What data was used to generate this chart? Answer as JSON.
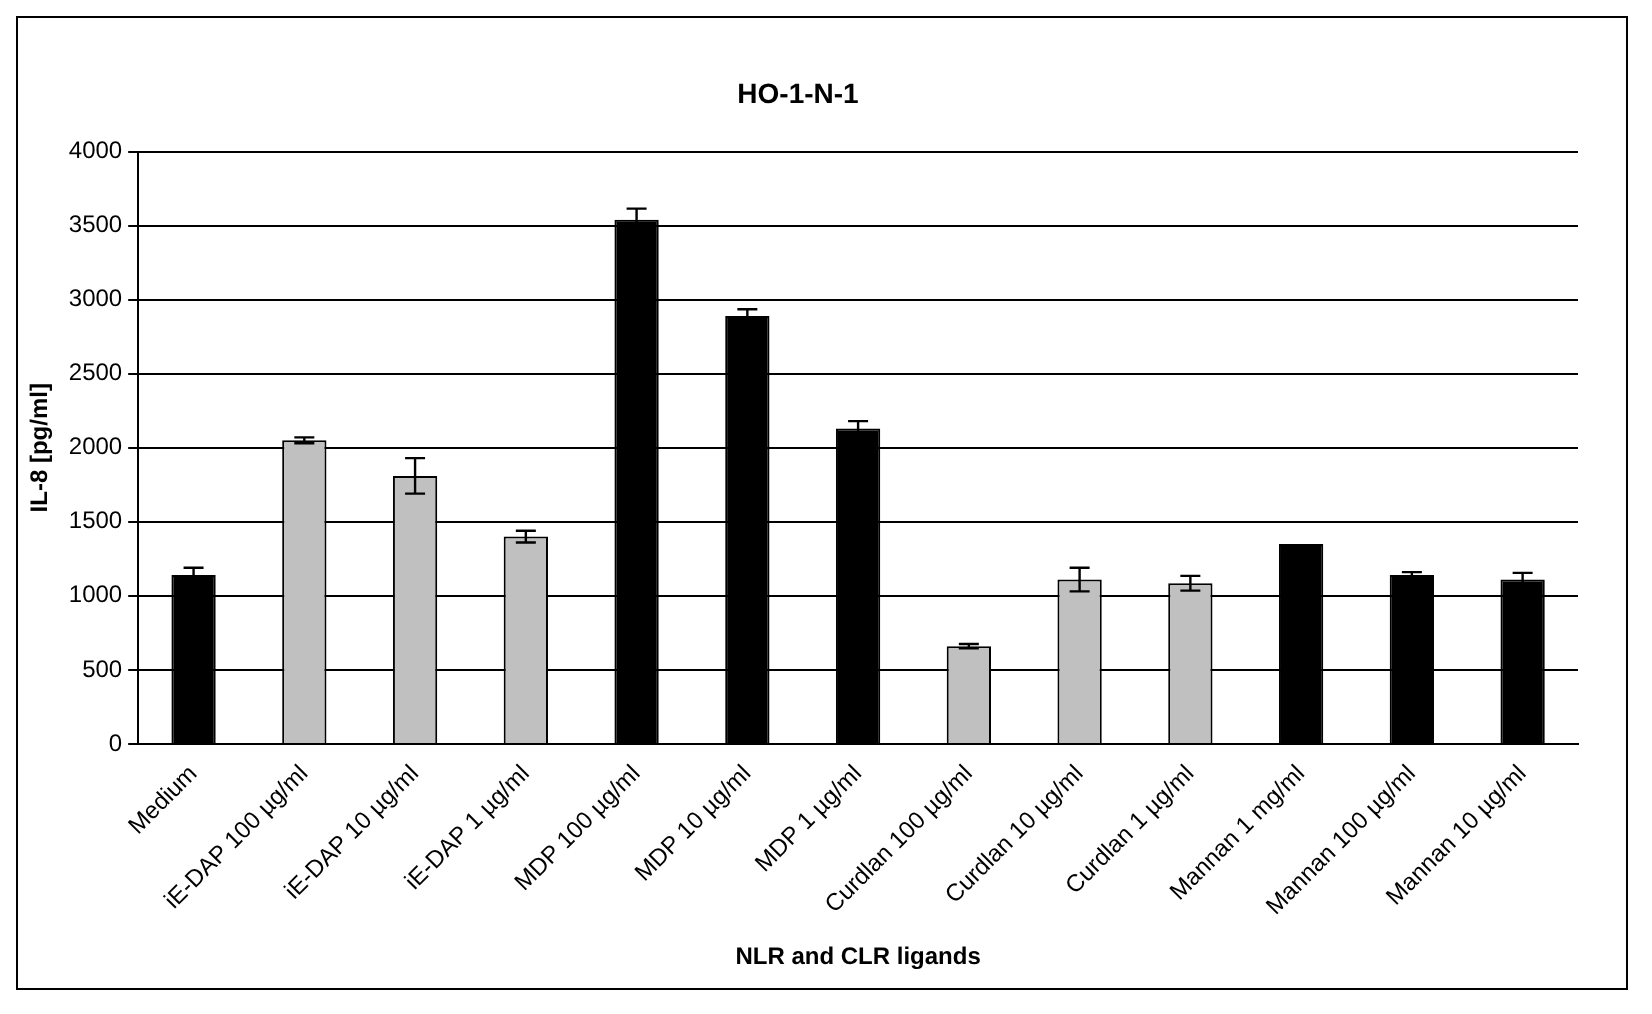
{
  "chart_data": {
    "type": "bar",
    "title": "HO-1-N-1",
    "xlabel": "NLR and CLR ligands",
    "ylabel": "IL-8 [pg/ml]",
    "categories": [
      "Medium",
      "iE-DAP 100 µg/ml",
      "iE-DAP 10 µg/ml",
      "iE-DAP 1 µg/ml",
      "MDP 100 µg/ml",
      "MDP 10 µg/ml",
      "MDP 1 µg/ml",
      "Curdlan 100 µg/ml",
      "Curdlan 10 µg/ml",
      "Curdlan 1 µg/ml",
      "Mannan 1 mg/ml",
      "Mannan 100 µg/ml",
      "Mannan 10 µg/ml"
    ],
    "values": [
      1140,
      2050,
      1810,
      1400,
      3540,
      2890,
      2130,
      660,
      1110,
      1085,
      1350,
      1140,
      1110
    ],
    "errors": [
      50,
      20,
      120,
      40,
      75,
      45,
      50,
      15,
      80,
      50,
      null,
      20,
      45
    ],
    "colors": [
      "#000000",
      "#c0c0c0",
      "#c0c0c0",
      "#c0c0c0",
      "#000000",
      "#000000",
      "#000000",
      "#c0c0c0",
      "#c0c0c0",
      "#c0c0c0",
      "#000000",
      "#000000",
      "#000000"
    ],
    "ylim": [
      0,
      4000
    ],
    "yticks": [
      0,
      500,
      1000,
      1500,
      2000,
      2500,
      3000,
      3500,
      4000
    ],
    "grid": "y",
    "legend": false
  }
}
